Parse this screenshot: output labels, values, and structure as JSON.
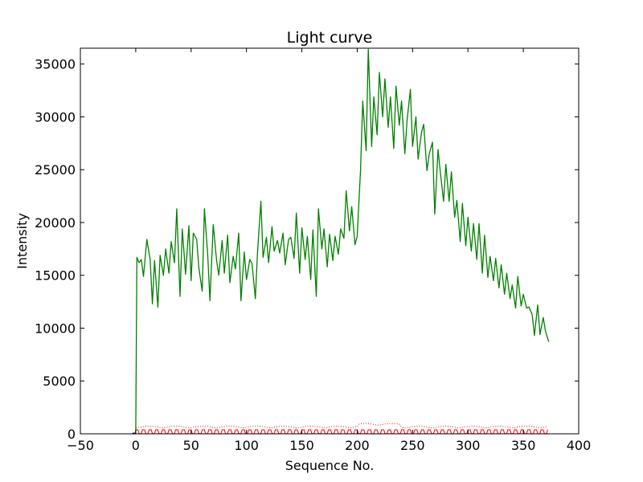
{
  "chart_data": {
    "type": "line",
    "title": "Light curve",
    "xlabel": "Sequence No.",
    "ylabel": "Intensity",
    "xlim": [
      -50,
      400
    ],
    "ylim": [
      0,
      36500
    ],
    "xticks": [
      -50,
      0,
      50,
      100,
      150,
      200,
      250,
      300,
      350,
      400
    ],
    "yticks": [
      0,
      5000,
      10000,
      15000,
      20000,
      25000,
      30000,
      35000
    ],
    "grid": false,
    "legend": "none",
    "colors": {
      "main": "#008000",
      "background": "#ff0000",
      "error": "#ff0000",
      "marker": "#0000ff"
    },
    "series": [
      {
        "style": "solid",
        "color": "#008000",
        "x": [
          -1,
          0,
          1,
          3,
          5,
          7,
          10,
          13,
          15,
          17,
          20,
          22,
          25,
          27,
          30,
          32,
          35,
          37,
          40,
          42,
          45,
          48,
          50,
          52,
          55,
          57,
          60,
          62,
          65,
          67,
          70,
          73,
          75,
          78,
          80,
          83,
          85,
          88,
          90,
          93,
          95,
          98,
          100,
          103,
          105,
          108,
          110,
          113,
          115,
          118,
          120,
          123,
          125,
          128,
          130,
          133,
          135,
          138,
          140,
          143,
          145,
          148,
          150,
          153,
          155,
          158,
          160,
          163,
          165,
          168,
          170,
          173,
          175,
          178,
          180,
          183,
          185,
          188,
          190,
          193,
          195,
          198,
          200,
          203,
          205,
          208,
          210,
          213,
          215,
          218,
          220,
          223,
          225,
          228,
          230,
          233,
          235,
          238,
          240,
          243,
          245,
          248,
          250,
          253,
          255,
          258,
          260,
          263,
          265,
          268,
          270,
          273,
          275,
          278,
          280,
          283,
          285,
          288,
          290,
          293,
          295,
          298,
          300,
          303,
          305,
          308,
          310,
          313,
          315,
          318,
          320,
          323,
          325,
          328,
          330,
          333,
          335,
          338,
          340,
          343,
          345,
          348,
          350,
          353,
          355,
          358,
          360,
          363,
          365,
          368,
          370,
          373
        ],
        "values": [
          0,
          200,
          16700,
          16200,
          16500,
          14900,
          18400,
          16500,
          12300,
          16400,
          12000,
          16900,
          15000,
          17500,
          15200,
          18200,
          16200,
          21300,
          13000,
          19400,
          15100,
          19700,
          14500,
          19000,
          18400,
          15700,
          13500,
          21300,
          17000,
          12600,
          19800,
          16400,
          15000,
          18300,
          15200,
          18800,
          14300,
          16800,
          15600,
          19000,
          12600,
          17200,
          14600,
          16500,
          16100,
          12800,
          17200,
          22000,
          16700,
          18600,
          16200,
          19600,
          17300,
          18300,
          17100,
          19000,
          16000,
          18400,
          18600,
          16600,
          20900,
          15200,
          19500,
          16500,
          18700,
          14600,
          19300,
          13000,
          21300,
          17500,
          19400,
          15800,
          18900,
          16400,
          18700,
          17000,
          19400,
          18500,
          23000,
          19200,
          21500,
          17900,
          18700,
          25000,
          31500,
          26800,
          36400,
          27200,
          31900,
          28300,
          34200,
          30000,
          33600,
          29000,
          31900,
          27000,
          32900,
          29200,
          31500,
          26500,
          29600,
          32600,
          27200,
          30000,
          26000,
          28500,
          29300,
          24900,
          26500,
          27600,
          20800,
          26900,
          24800,
          22000,
          25500,
          22000,
          24800,
          20500,
          22100,
          18200,
          21800,
          17800,
          20500,
          17300,
          19900,
          16500,
          19900,
          15200,
          18800,
          14800,
          16800,
          14500,
          16600,
          13800,
          16000,
          13200,
          15200,
          12800,
          14100,
          11900,
          14900,
          12100,
          13200,
          11900,
          12000,
          11300,
          9300,
          12200,
          9400,
          11000,
          9700,
          8700
        ]
      }
    ]
  }
}
